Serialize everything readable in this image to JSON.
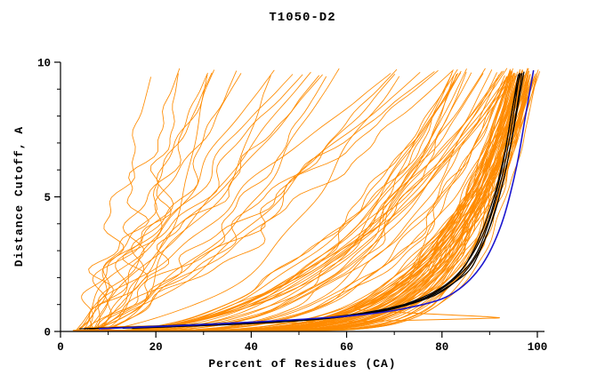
{
  "chart_data": {
    "type": "line",
    "title": "T1050-D2",
    "xlabel": "Percent of Residues (CA)",
    "ylabel": "Distance Cutoff, A",
    "xlim": [
      0,
      101.5
    ],
    "ylim": [
      0,
      10
    ],
    "x_major_ticks": [
      0,
      20,
      40,
      60,
      80,
      100
    ],
    "x_minor_step": 10,
    "y_major_ticks": [
      0,
      5,
      10
    ],
    "y_minor_step": 1,
    "grid": false,
    "legend": null,
    "colors": {
      "ensemble": "#ff8b00",
      "reference": "#000000",
      "best_model": "#1c17cf",
      "axis": "#000000"
    },
    "ensemble_model_curves": {
      "seed": 1337,
      "groups": [
        {
          "count": 62,
          "start": [
            2.5,
            6.0
          ],
          "end": [
            94.0,
            100.5
          ],
          "shape": [
            0.1,
            0.22
          ],
          "amp": [
            0.4,
            1.2
          ]
        },
        {
          "count": 28,
          "start": [
            3.0,
            7.0
          ],
          "end": [
            82.0,
            96.0
          ],
          "shape": [
            0.22,
            0.45
          ],
          "amp": [
            0.8,
            2.0
          ]
        },
        {
          "count": 26,
          "start": [
            3.0,
            8.0
          ],
          "end": [
            16.0,
            88.0
          ],
          "shape": [
            0.45,
            1.15
          ],
          "amp": [
            1.5,
            4.0
          ]
        }
      ]
    },
    "outlier_curve": {
      "points": [
        [
          5,
          0.15
        ],
        [
          57,
          0.35
        ],
        [
          88,
          0.48
        ],
        [
          89,
          0.55
        ],
        [
          63,
          0.8
        ],
        [
          66,
          1.1
        ],
        [
          70,
          1.6
        ],
        [
          76,
          2.4
        ],
        [
          82,
          3.6
        ],
        [
          87,
          5.2
        ],
        [
          91,
          7.0
        ],
        [
          95,
          9.5
        ]
      ]
    },
    "highlighted_curves_black": [
      {
        "points": [
          [
            13,
            0.12
          ],
          [
            40,
            0.3
          ],
          [
            60,
            0.6
          ],
          [
            72,
            1.0
          ],
          [
            79,
            1.5
          ],
          [
            85,
            2.5
          ],
          [
            89.5,
            4.0
          ],
          [
            92.5,
            6.0
          ],
          [
            94.5,
            8.0
          ],
          [
            96,
            9.55
          ]
        ]
      },
      {
        "points": [
          [
            15,
            0.12
          ],
          [
            43,
            0.32
          ],
          [
            63,
            0.62
          ],
          [
            74,
            1.05
          ],
          [
            81,
            1.6
          ],
          [
            86.5,
            2.6
          ],
          [
            90.5,
            4.1
          ],
          [
            93.5,
            6.1
          ],
          [
            95.5,
            8.1
          ],
          [
            96.8,
            9.6
          ]
        ]
      },
      {
        "points": [
          [
            5,
            0.1
          ],
          [
            50,
            0.4
          ],
          [
            68,
            0.8
          ],
          [
            77,
            1.3
          ],
          [
            83,
            2.0
          ],
          [
            87.5,
            3.0
          ],
          [
            91.5,
            5.0
          ],
          [
            94,
            7.0
          ],
          [
            96.3,
            9.6
          ]
        ]
      },
      {
        "points": [
          [
            6,
            0.1
          ],
          [
            55,
            0.5
          ],
          [
            73,
            1.0
          ],
          [
            84,
            2.0
          ],
          [
            88,
            3.0
          ],
          [
            92,
            5.0
          ],
          [
            94.5,
            7.0
          ],
          [
            97.2,
            9.65
          ]
        ]
      },
      {
        "points": [
          [
            4,
            0.1
          ],
          [
            45,
            0.35
          ],
          [
            65,
            0.7
          ],
          [
            75,
            1.2
          ],
          [
            82,
            1.9
          ],
          [
            86,
            2.8
          ],
          [
            90,
            4.5
          ],
          [
            93,
            6.5
          ],
          [
            95,
            8.5
          ],
          [
            96.5,
            9.58
          ]
        ]
      }
    ],
    "best_curve_blue": {
      "points": [
        [
          8,
          0.1
        ],
        [
          35,
          0.3
        ],
        [
          62,
          0.6
        ],
        [
          76,
          1.0
        ],
        [
          83,
          1.5
        ],
        [
          88.5,
          2.5
        ],
        [
          92.5,
          4.0
        ],
        [
          95.5,
          6.0
        ],
        [
          97.5,
          8.0
        ],
        [
          99.2,
          9.7
        ]
      ]
    }
  }
}
